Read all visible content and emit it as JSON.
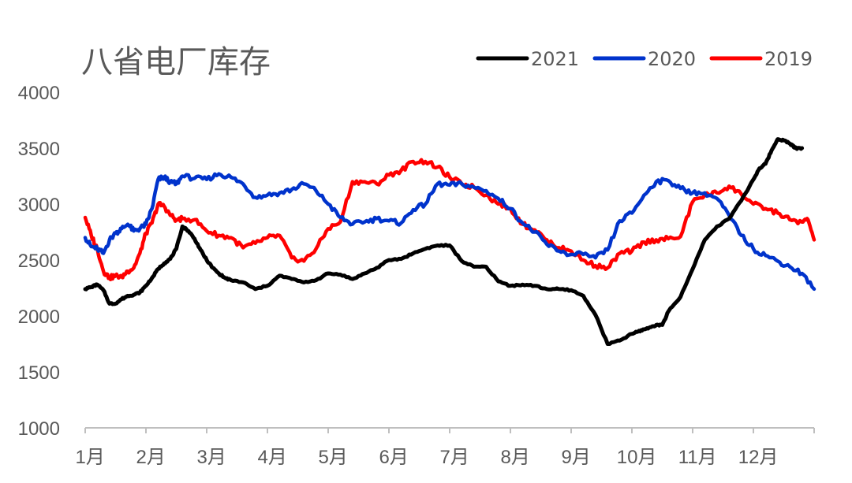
{
  "chart_data": {
    "type": "line",
    "title": "八省电厂库存",
    "xlabel": "",
    "ylabel": "",
    "ylim": [
      1000,
      4000
    ],
    "yticks": [
      1000,
      1500,
      2000,
      2500,
      3000,
      3500,
      4000
    ],
    "x_categories": [
      "1月",
      "2月",
      "3月",
      "4月",
      "5月",
      "6月",
      "7月",
      "8月",
      "9月",
      "10月",
      "11月",
      "12月"
    ],
    "xlim": [
      0,
      12
    ],
    "grid": false,
    "legend_position": "top-right",
    "series": [
      {
        "name": "2021",
        "color": "#000000",
        "x": [
          0,
          0.1,
          0.2,
          0.3,
          0.4,
          0.5,
          0.6,
          0.7,
          0.8,
          0.9,
          1.0,
          1.1,
          1.2,
          1.3,
          1.4,
          1.5,
          1.6,
          1.7,
          1.8,
          1.9,
          2.0,
          2.1,
          2.2,
          2.3,
          2.4,
          2.6,
          2.8,
          3.0,
          3.2,
          3.4,
          3.6,
          3.8,
          4.0,
          4.2,
          4.4,
          4.6,
          4.8,
          5.0,
          5.2,
          5.4,
          5.6,
          5.8,
          6.0,
          6.2,
          6.4,
          6.6,
          6.8,
          7.0,
          7.2,
          7.4,
          7.6,
          7.8,
          8.0,
          8.2,
          8.4,
          8.6,
          8.8,
          9.0,
          9.1,
          9.2,
          9.3,
          9.4,
          9.5,
          9.6,
          9.8,
          10.0,
          10.2,
          10.4,
          10.6,
          10.8,
          11.0,
          11.1,
          11.2,
          11.3,
          11.4,
          11.5,
          11.6,
          11.65,
          11.7,
          11.8
        ],
        "values": [
          2240,
          2260,
          2280,
          2230,
          2110,
          2110,
          2150,
          2180,
          2190,
          2210,
          2270,
          2340,
          2420,
          2470,
          2510,
          2600,
          2800,
          2760,
          2690,
          2590,
          2500,
          2430,
          2380,
          2340,
          2320,
          2300,
          2240,
          2270,
          2360,
          2330,
          2300,
          2320,
          2380,
          2370,
          2330,
          2380,
          2430,
          2500,
          2510,
          2560,
          2600,
          2630,
          2630,
          2490,
          2440,
          2440,
          2310,
          2270,
          2280,
          2270,
          2240,
          2240,
          2230,
          2180,
          2010,
          1750,
          1780,
          1840,
          1860,
          1880,
          1900,
          1920,
          1920,
          2040,
          2170,
          2420,
          2680,
          2800,
          2870,
          3030,
          3220,
          3320,
          3360,
          3480,
          3580,
          3570,
          3540,
          3520,
          3500,
          3500
        ]
      },
      {
        "name": "2020",
        "color": "#0033cc",
        "x": [
          0,
          0.1,
          0.2,
          0.3,
          0.4,
          0.5,
          0.6,
          0.7,
          0.8,
          0.9,
          1.0,
          1.1,
          1.2,
          1.3,
          1.4,
          1.5,
          1.6,
          1.8,
          2.0,
          2.2,
          2.4,
          2.6,
          2.8,
          3.0,
          3.2,
          3.4,
          3.6,
          3.8,
          4.0,
          4.2,
          4.4,
          4.6,
          4.8,
          5.0,
          5.2,
          5.4,
          5.6,
          5.8,
          6.0,
          6.2,
          6.4,
          6.6,
          6.8,
          7.0,
          7.2,
          7.4,
          7.6,
          7.8,
          8.0,
          8.2,
          8.4,
          8.6,
          8.8,
          9.0,
          9.2,
          9.4,
          9.6,
          9.8,
          10.0,
          10.2,
          10.4,
          10.6,
          10.8,
          11.0,
          11.2,
          11.4,
          11.6,
          11.8,
          12.0
        ],
        "values": [
          2700,
          2620,
          2600,
          2560,
          2680,
          2740,
          2780,
          2820,
          2760,
          2780,
          2820,
          2960,
          3220,
          3240,
          3200,
          3180,
          3250,
          3230,
          3220,
          3270,
          3240,
          3180,
          3060,
          3080,
          3100,
          3130,
          3180,
          3120,
          3000,
          2880,
          2820,
          2840,
          2870,
          2850,
          2830,
          2950,
          3000,
          3180,
          3170,
          3180,
          3150,
          3120,
          3050,
          2960,
          2830,
          2750,
          2640,
          2580,
          2550,
          2550,
          2520,
          2590,
          2850,
          2920,
          3080,
          3200,
          3210,
          3140,
          3100,
          3100,
          3050,
          2900,
          2720,
          2600,
          2540,
          2490,
          2440,
          2380,
          2240
        ]
      },
      {
        "name": "2019",
        "color": "#ff0000",
        "x": [
          0,
          0.1,
          0.2,
          0.3,
          0.4,
          0.5,
          0.6,
          0.7,
          0.8,
          0.9,
          1.0,
          1.1,
          1.2,
          1.3,
          1.4,
          1.5,
          1.6,
          1.8,
          2.0,
          2.2,
          2.4,
          2.6,
          2.8,
          3.0,
          3.2,
          3.4,
          3.6,
          3.8,
          4.0,
          4.2,
          4.4,
          4.6,
          4.8,
          5.0,
          5.2,
          5.4,
          5.6,
          5.8,
          6.0,
          6.2,
          6.4,
          6.6,
          6.8,
          7.0,
          7.2,
          7.4,
          7.6,
          7.8,
          8.0,
          8.2,
          8.4,
          8.6,
          8.8,
          9.0,
          9.2,
          9.4,
          9.6,
          9.8,
          10.0,
          10.2,
          10.4,
          10.6,
          10.8,
          11.0,
          11.2,
          11.4,
          11.6,
          11.8,
          11.9,
          12.0
        ],
        "values": [
          2880,
          2720,
          2600,
          2400,
          2340,
          2360,
          2350,
          2400,
          2430,
          2560,
          2740,
          2830,
          3000,
          2980,
          2900,
          2860,
          2870,
          2860,
          2760,
          2720,
          2700,
          2610,
          2650,
          2700,
          2720,
          2520,
          2490,
          2600,
          2780,
          2840,
          3200,
          3200,
          3180,
          3260,
          3300,
          3380,
          3380,
          3330,
          3240,
          3180,
          3150,
          3080,
          3000,
          2960,
          2820,
          2770,
          2680,
          2610,
          2580,
          2500,
          2450,
          2430,
          2560,
          2580,
          2660,
          2680,
          2690,
          2710,
          3020,
          3080,
          3100,
          3160,
          3090,
          3000,
          2960,
          2920,
          2860,
          2840,
          2860,
          2680
        ]
      }
    ]
  }
}
